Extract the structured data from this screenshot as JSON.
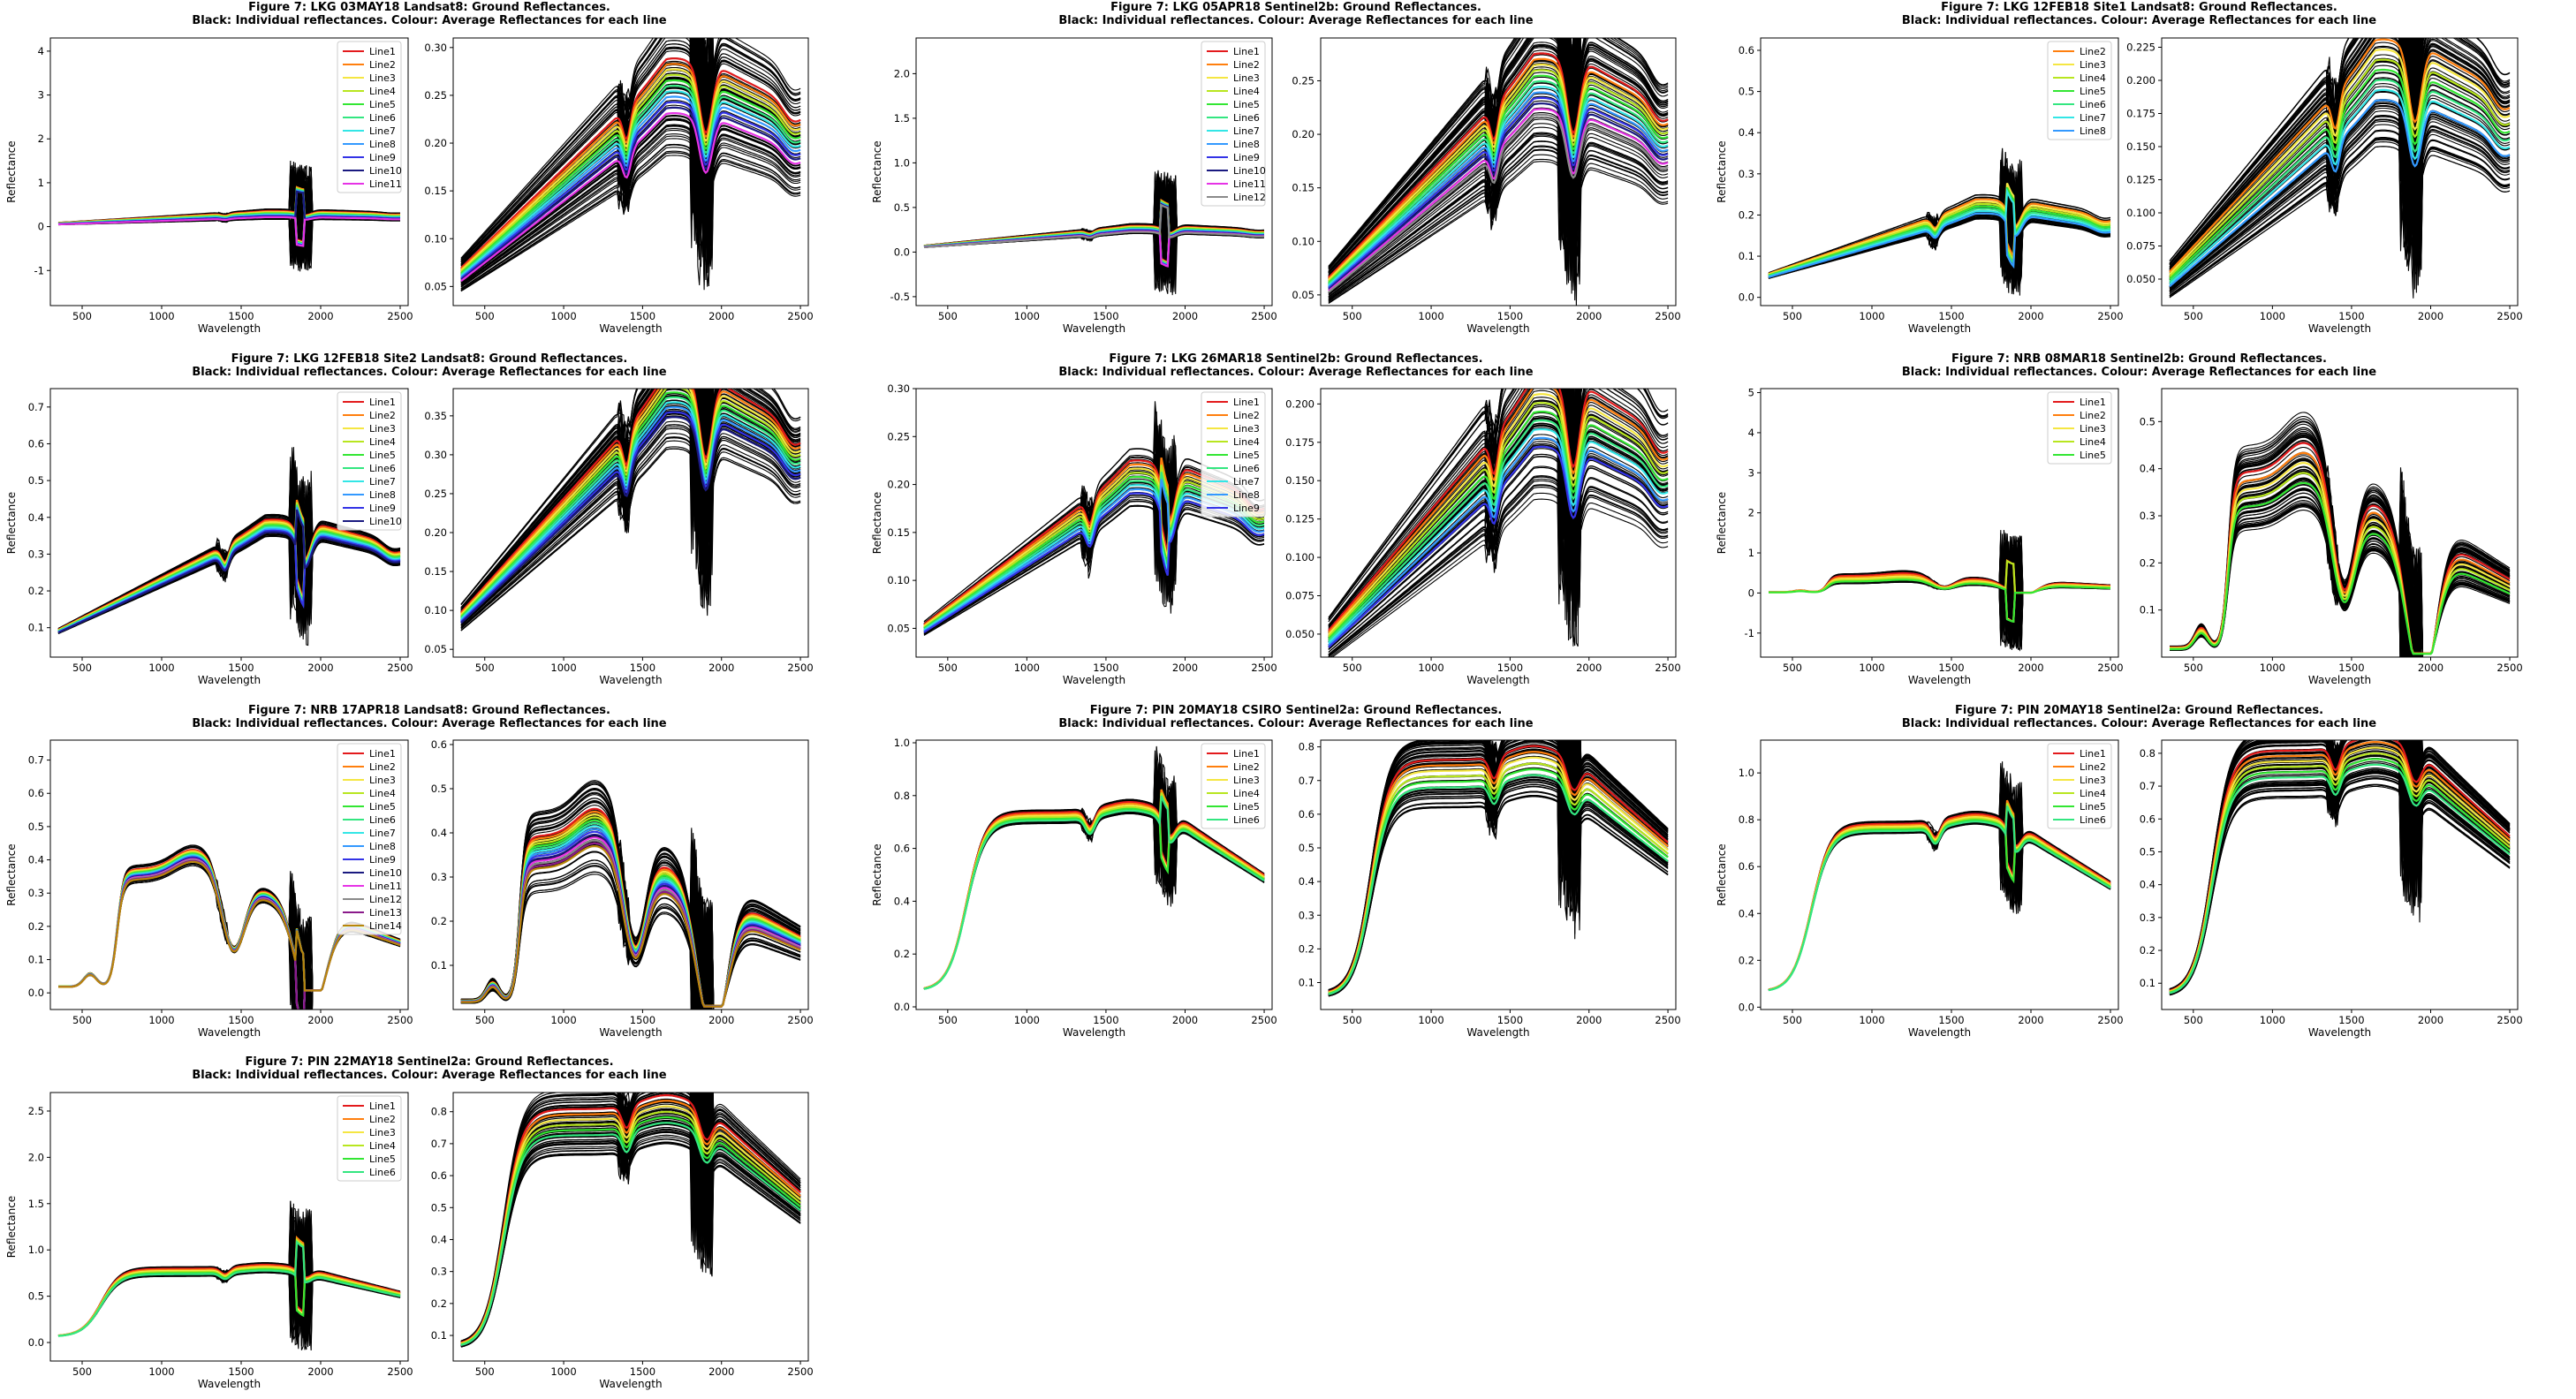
{
  "figure": {
    "suptitle_line2": "Black: Individual reflectances. Colour: Average Reflectances for each line"
  },
  "line_colors": {
    "Line1": "#e31a1c",
    "Line2": "#ff7f0e",
    "Line3": "#f5e642",
    "Line4": "#b8e61f",
    "Line5": "#33e633",
    "Line6": "#33e680",
    "Line7": "#33e6e6",
    "Line8": "#3399ff",
    "Line9": "#3333e6",
    "Line10": "#1a1a80",
    "Line11": "#e633e6",
    "Line12": "#8a8a8a",
    "Line13": "#8a1a8a",
    "Line14": "#b8860b"
  },
  "chart_data": [
    {
      "title": "Figure 7: LKG 03MAY18  Landsat8: Ground Reflectances.",
      "subtitle": "Black: Individual reflectances. Colour: Average Reflectances for each line",
      "type": "line",
      "xlabel": "Wavelength",
      "ylabel": "Reflectance",
      "xlim": [
        350,
        2500
      ],
      "legend": [
        "Line1",
        "Line2",
        "Line3",
        "Line4",
        "Line5",
        "Line6",
        "Line7",
        "Line8",
        "Line9",
        "Line10",
        "Line11"
      ],
      "left": {
        "ylim": [
          -1.8,
          4.3
        ],
        "yticks": [
          "-1",
          "0",
          "1",
          "2",
          "3",
          "4"
        ],
        "ytick_values": [
          -1,
          0,
          1,
          2,
          3,
          4
        ]
      },
      "right": {
        "ylim": [
          0.03,
          0.31
        ],
        "yticks": [
          "0.05",
          "0.10",
          "0.15",
          "0.20",
          "0.25",
          "0.30"
        ],
        "ytick_values": [
          0.05,
          0.1,
          0.15,
          0.2,
          0.25,
          0.3
        ]
      },
      "xticks": [
        "500",
        "1000",
        "1500",
        "2000",
        "2500"
      ],
      "xtick_values": [
        500,
        1000,
        1500,
        2000,
        2500
      ],
      "shape": "veg",
      "center_right": 0.2,
      "spread_right": 0.05,
      "center_left": 0.22,
      "spike_left": 4.0
    },
    {
      "title": "Figure 7: LKG 05APR18  Sentinel2b: Ground Reflectances.",
      "subtitle": "Black: Individual reflectances. Colour: Average Reflectances for each line",
      "type": "line",
      "xlabel": "Wavelength",
      "ylabel": "Reflectance",
      "xlim": [
        350,
        2500
      ],
      "legend": [
        "Line1",
        "Line2",
        "Line3",
        "Line4",
        "Line5",
        "Line6",
        "Line7",
        "Line8",
        "Line9",
        "Line10",
        "Line11",
        "Line12"
      ],
      "left": {
        "ylim": [
          -0.6,
          2.4
        ],
        "yticks": [
          "-0.5",
          "0.0",
          "0.5",
          "1.0",
          "1.5",
          "2.0"
        ],
        "ytick_values": [
          -0.5,
          0.0,
          0.5,
          1.0,
          1.5,
          2.0
        ]
      },
      "right": {
        "ylim": [
          0.04,
          0.29
        ],
        "yticks": [
          "0.05",
          "0.10",
          "0.15",
          "0.20",
          "0.25"
        ],
        "ytick_values": [
          0.05,
          0.1,
          0.15,
          0.2,
          0.25
        ]
      },
      "xticks": [
        "500",
        "1000",
        "1500",
        "2000",
        "2500"
      ],
      "xtick_values": [
        500,
        1000,
        1500,
        2000,
        2500
      ],
      "shape": "veg",
      "center_right": 0.19,
      "spread_right": 0.05,
      "center_left": 0.2,
      "spike_left": 2.2
    },
    {
      "title": "Figure 7: LKG 12FEB18 Site1 Landsat8: Ground Reflectances.",
      "subtitle": "Black: Individual reflectances. Colour: Average Reflectances for each line",
      "type": "line",
      "xlabel": "Wavelength",
      "ylabel": "Reflectance",
      "xlim": [
        350,
        2500
      ],
      "legend": [
        "Line2",
        "Line3",
        "Line4",
        "Line5",
        "Line6",
        "Line7",
        "Line8"
      ],
      "left": {
        "ylim": [
          -0.02,
          0.63
        ],
        "yticks": [
          "0.0",
          "0.1",
          "0.2",
          "0.3",
          "0.4",
          "0.5",
          "0.6"
        ],
        "ytick_values": [
          0.0,
          0.1,
          0.2,
          0.3,
          0.4,
          0.5,
          0.6
        ]
      },
      "right": {
        "ylim": [
          0.03,
          0.232
        ],
        "yticks": [
          "0.050",
          "0.075",
          "0.100",
          "0.125",
          "0.150",
          "0.175",
          "0.200",
          "0.225"
        ],
        "ytick_values": [
          0.05,
          0.075,
          0.1,
          0.125,
          0.15,
          0.175,
          0.2,
          0.225
        ]
      },
      "xticks": [
        "500",
        "1000",
        "1500",
        "2000",
        "2500"
      ],
      "xtick_values": [
        500,
        1000,
        1500,
        2000,
        2500
      ],
      "shape": "veg",
      "center_right": 0.16,
      "spread_right": 0.04,
      "center_left": 0.17,
      "spike_left": 0.5
    },
    {
      "title": "Figure 7: LKG 12FEB18 Site2 Landsat8: Ground Reflectances.",
      "subtitle": "Black: Individual reflectances. Colour: Average Reflectances for each line",
      "type": "line",
      "xlabel": "Wavelength",
      "ylabel": "Reflectance",
      "xlim": [
        350,
        2500
      ],
      "legend": [
        "Line1",
        "Line2",
        "Line3",
        "Line4",
        "Line5",
        "Line6",
        "Line7",
        "Line8",
        "Line9",
        "Line10"
      ],
      "left": {
        "ylim": [
          0.02,
          0.75
        ],
        "yticks": [
          "0.1",
          "0.2",
          "0.3",
          "0.4",
          "0.5",
          "0.6",
          "0.7"
        ],
        "ytick_values": [
          0.1,
          0.2,
          0.3,
          0.4,
          0.5,
          0.6,
          0.7
        ]
      },
      "right": {
        "ylim": [
          0.04,
          0.385
        ],
        "yticks": [
          "0.05",
          "0.10",
          "0.15",
          "0.20",
          "0.25",
          "0.30",
          "0.35"
        ],
        "ytick_values": [
          0.05,
          0.1,
          0.15,
          0.2,
          0.25,
          0.3,
          0.35
        ]
      },
      "xticks": [
        "500",
        "1000",
        "1500",
        "2000",
        "2500"
      ],
      "xtick_values": [
        500,
        1000,
        1500,
        2000,
        2500
      ],
      "shape": "veg",
      "center_right": 0.29,
      "spread_right": 0.05,
      "center_left": 0.29,
      "spike_left": 0.72
    },
    {
      "title": "Figure 7: LKG 26MAR18  Sentinel2b: Ground Reflectances.",
      "subtitle": "Black: Individual reflectances. Colour: Average Reflectances for each line",
      "type": "line",
      "xlabel": "Wavelength",
      "ylabel": "Reflectance",
      "xlim": [
        350,
        2500
      ],
      "legend": [
        "Line1",
        "Line2",
        "Line3",
        "Line4",
        "Line5",
        "Line6",
        "Line7",
        "Line8",
        "Line9"
      ],
      "left": {
        "ylim": [
          0.02,
          0.3
        ],
        "yticks": [
          "0.05",
          "0.10",
          "0.15",
          "0.20",
          "0.25",
          "0.30"
        ],
        "ytick_values": [
          0.05,
          0.1,
          0.15,
          0.2,
          0.25,
          0.3
        ]
      },
      "right": {
        "ylim": [
          0.035,
          0.21
        ],
        "yticks": [
          "0.050",
          "0.075",
          "0.100",
          "0.125",
          "0.150",
          "0.175",
          "0.200"
        ],
        "ytick_values": [
          0.05,
          0.075,
          0.1,
          0.125,
          0.15,
          0.175,
          0.2
        ]
      },
      "xticks": [
        "500",
        "1000",
        "1500",
        "2000",
        "2500"
      ],
      "xtick_values": [
        500,
        1000,
        1500,
        2000,
        2500
      ],
      "shape": "veg",
      "center_right": 0.15,
      "spread_right": 0.04,
      "center_left": 0.16,
      "spike_left": 0.24
    },
    {
      "title": "Figure 7: NRB 08MAR18  Sentinel2b: Ground Reflectances.",
      "subtitle": "Black: Individual reflectances. Colour: Average Reflectances for each line",
      "type": "line",
      "xlabel": "Wavelength",
      "ylabel": "Reflectance",
      "xlim": [
        350,
        2500
      ],
      "legend": [
        "Line1",
        "Line2",
        "Line3",
        "Line4",
        "Line5"
      ],
      "left": {
        "ylim": [
          -1.6,
          5.1
        ],
        "yticks": [
          "-1",
          "0",
          "1",
          "2",
          "3",
          "4",
          "5"
        ],
        "ytick_values": [
          -1,
          0,
          1,
          2,
          3,
          4,
          5
        ]
      },
      "right": {
        "ylim": [
          0.0,
          0.57
        ],
        "yticks": [
          "0.1",
          "0.2",
          "0.3",
          "0.4",
          "0.5"
        ],
        "ytick_values": [
          0.1,
          0.2,
          0.3,
          0.4,
          0.5
        ]
      },
      "xticks": [
        "500",
        "1000",
        "1500",
        "2000",
        "2500"
      ],
      "xtick_values": [
        500,
        1000,
        1500,
        2000,
        2500
      ],
      "shape": "green",
      "center_right": 0.3,
      "spread_right": 0.07,
      "center_left": 0.3,
      "spike_left": 4.8
    },
    {
      "title": "Figure 7: NRB 17APR18  Landsat8: Ground Reflectances.",
      "subtitle": "Black: Individual reflectances. Colour: Average Reflectances for each line",
      "type": "line",
      "xlabel": "Wavelength",
      "ylabel": "Reflectance",
      "xlim": [
        350,
        2500
      ],
      "legend": [
        "Line1",
        "Line2",
        "Line3",
        "Line4",
        "Line5",
        "Line6",
        "Line7",
        "Line8",
        "Line9",
        "Line10",
        "Line11",
        "Line12",
        "Line13",
        "Line14"
      ],
      "left": {
        "ylim": [
          -0.05,
          0.76
        ],
        "yticks": [
          "0.0",
          "0.1",
          "0.2",
          "0.3",
          "0.4",
          "0.5",
          "0.6",
          "0.7"
        ],
        "ytick_values": [
          0.0,
          0.1,
          0.2,
          0.3,
          0.4,
          0.5,
          0.6,
          0.7
        ]
      },
      "right": {
        "ylim": [
          0.0,
          0.61
        ],
        "yticks": [
          "0.1",
          "0.2",
          "0.3",
          "0.4",
          "0.5",
          "0.6"
        ],
        "ytick_values": [
          0.1,
          0.2,
          0.3,
          0.4,
          0.5,
          0.6
        ]
      },
      "xticks": [
        "500",
        "1000",
        "1500",
        "2000",
        "2500"
      ],
      "xtick_values": [
        500,
        1000,
        1500,
        2000,
        2500
      ],
      "shape": "green",
      "center_right": 0.3,
      "spread_right": 0.07,
      "center_left": 0.3,
      "spike_left": 0.74
    },
    {
      "title": "Figure 7: PIN 20MAY18 CSIRO Sentinel2a: Ground Reflectances.",
      "subtitle": "Black: Individual reflectances. Colour: Average Reflectances for each line",
      "type": "line",
      "xlabel": "Wavelength",
      "ylabel": "Reflectance",
      "xlim": [
        350,
        2500
      ],
      "legend": [
        "Line1",
        "Line2",
        "Line3",
        "Line4",
        "Line5",
        "Line6"
      ],
      "left": {
        "ylim": [
          -0.01,
          1.01
        ],
        "yticks": [
          "0.0",
          "0.2",
          "0.4",
          "0.6",
          "0.8",
          "1.0"
        ],
        "ytick_values": [
          0.0,
          0.2,
          0.4,
          0.6,
          0.8,
          1.0
        ]
      },
      "right": {
        "ylim": [
          0.02,
          0.82
        ],
        "yticks": [
          "0.1",
          "0.2",
          "0.3",
          "0.4",
          "0.5",
          "0.6",
          "0.7",
          "0.8"
        ],
        "ytick_values": [
          0.1,
          0.2,
          0.3,
          0.4,
          0.5,
          0.6,
          0.7,
          0.8
        ]
      },
      "xticks": [
        "500",
        "1000",
        "1500",
        "2000",
        "2500"
      ],
      "xtick_values": [
        500,
        1000,
        1500,
        2000,
        2500
      ],
      "shape": "soil",
      "center_right": 0.62,
      "spread_right": 0.08,
      "center_left": 0.62,
      "spike_left": 0.8
    },
    {
      "title": "Figure 7: PIN 20MAY18  Sentinel2a: Ground Reflectances.",
      "subtitle": "Black: Individual reflectances. Colour: Average Reflectances for each line",
      "type": "line",
      "xlabel": "Wavelength",
      "ylabel": "Reflectance",
      "xlim": [
        350,
        2500
      ],
      "legend": [
        "Line1",
        "Line2",
        "Line3",
        "Line4",
        "Line5",
        "Line6"
      ],
      "left": {
        "ylim": [
          -0.01,
          1.14
        ],
        "yticks": [
          "0.0",
          "0.2",
          "0.4",
          "0.6",
          "0.8",
          "1.0"
        ],
        "ytick_values": [
          0.0,
          0.2,
          0.4,
          0.6,
          0.8,
          1.0
        ]
      },
      "right": {
        "ylim": [
          0.02,
          0.84
        ],
        "yticks": [
          "0.1",
          "0.2",
          "0.3",
          "0.4",
          "0.5",
          "0.6",
          "0.7",
          "0.8"
        ],
        "ytick_values": [
          0.1,
          0.2,
          0.3,
          0.4,
          0.5,
          0.6,
          0.7,
          0.8
        ]
      },
      "xticks": [
        "500",
        "1000",
        "1500",
        "2000",
        "2500"
      ],
      "xtick_values": [
        500,
        1000,
        1500,
        2000,
        2500
      ],
      "shape": "soil",
      "center_right": 0.66,
      "spread_right": 0.08,
      "center_left": 0.66,
      "spike_left": 0.9
    },
    {
      "title": "Figure 7: PIN 22MAY18  Sentinel2a: Ground Reflectances.",
      "subtitle": "Black: Individual reflectances. Colour: Average Reflectances for each line",
      "type": "line",
      "xlabel": "Wavelength",
      "ylabel": "Reflectance",
      "xlim": [
        350,
        2500
      ],
      "legend": [
        "Line1",
        "Line2",
        "Line3",
        "Line4",
        "Line5",
        "Line6"
      ],
      "left": {
        "ylim": [
          -0.2,
          2.7
        ],
        "yticks": [
          "0.0",
          "0.5",
          "1.0",
          "1.5",
          "2.0",
          "2.5"
        ],
        "ytick_values": [
          0.0,
          0.5,
          1.0,
          1.5,
          2.0,
          2.5
        ]
      },
      "right": {
        "ylim": [
          0.02,
          0.86
        ],
        "yticks": [
          "0.1",
          "0.2",
          "0.3",
          "0.4",
          "0.5",
          "0.6",
          "0.7",
          "0.8"
        ],
        "ytick_values": [
          0.1,
          0.2,
          0.3,
          0.4,
          0.5,
          0.6,
          0.7,
          0.8
        ]
      },
      "xticks": [
        "500",
        "1000",
        "1500",
        "2000",
        "2500"
      ],
      "xtick_values": [
        500,
        1000,
        1500,
        2000,
        2500
      ],
      "shape": "soil",
      "center_right": 0.66,
      "spread_right": 0.08,
      "center_left": 0.66,
      "spike_left": 2.5
    }
  ]
}
